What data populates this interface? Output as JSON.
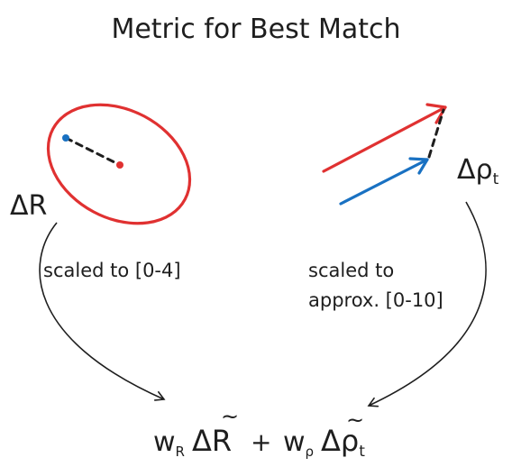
{
  "title": "Metric for Best Match",
  "left_panel": {
    "delta_symbol": "Δ",
    "symbol": "R",
    "scale_label": "scaled to [0-4]",
    "ellipse_color": "#e03131",
    "point_colors": [
      "#1971c2",
      "#e03131"
    ]
  },
  "right_panel": {
    "delta_symbol": "Δ",
    "symbol": "ρ",
    "subscript": "t",
    "scale_label_line1": "scaled to",
    "scale_label_line2": "approx. [0-10]",
    "arrow_colors": [
      "#e03131",
      "#1971c2"
    ]
  },
  "formula": {
    "weight_r": "w",
    "weight_r_sub": "R",
    "term_r_delta": "Δ",
    "term_r_symbol": "R",
    "term_r_tilde": "~",
    "plus": "+",
    "weight_p": "w",
    "weight_p_sub": "ρ",
    "term_p_delta": "Δ",
    "term_p_symbol": "ρ",
    "term_p_tilde": "~",
    "term_p_sub": "t"
  }
}
